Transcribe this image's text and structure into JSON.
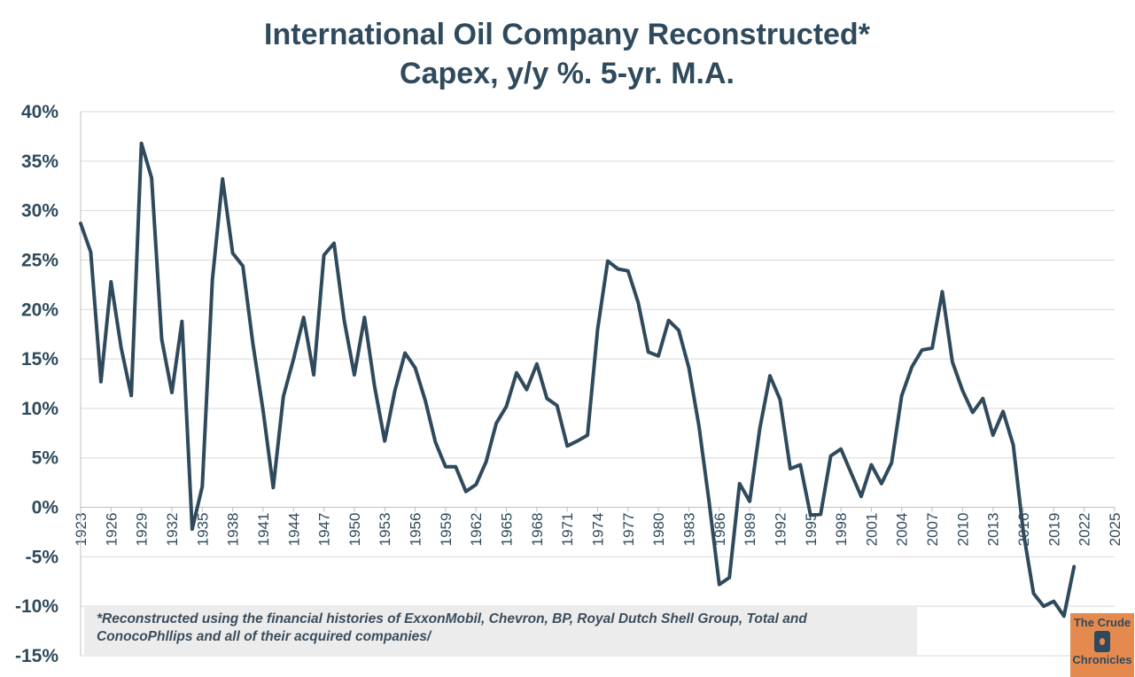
{
  "chart_data": {
    "type": "line",
    "title": "International Oil Company Reconstructed*",
    "subtitle": "Capex, y/y %. 5-yr. M.A.",
    "xlabel": "",
    "ylabel": "",
    "ylim": [
      -15,
      40
    ],
    "xlim": [
      1923,
      2025
    ],
    "y_ticks": [
      "40%",
      "35%",
      "30%",
      "25%",
      "20%",
      "15%",
      "10%",
      "5%",
      "0%",
      "-5%",
      "-10%",
      "-15%"
    ],
    "x_ticks": [
      "1923",
      "1926",
      "1929",
      "1932",
      "1935",
      "1938",
      "1941",
      "1944",
      "1947",
      "1950",
      "1953",
      "1956",
      "1959",
      "1962",
      "1965",
      "1968",
      "1971",
      "1974",
      "1977",
      "1980",
      "1983",
      "1986",
      "1989",
      "1992",
      "1995",
      "1998",
      "2001",
      "2004",
      "2007",
      "2010",
      "2013",
      "2016",
      "2019",
      "2022",
      "2025"
    ],
    "grid": true,
    "line_color": "#2f4a5c",
    "series": [
      {
        "x": [
          1923,
          1924,
          1925,
          1926,
          1927,
          1928,
          1929,
          1930,
          1931,
          1932,
          1933,
          1934,
          1935,
          1936,
          1937,
          1938,
          1939,
          1940,
          1941,
          1942,
          1943,
          1944,
          1945,
          1946,
          1947,
          1948,
          1949,
          1950,
          1951,
          1952,
          1953,
          1954,
          1955,
          1956,
          1957,
          1958,
          1959,
          1960,
          1961,
          1962,
          1963,
          1964,
          1965,
          1966,
          1967,
          1968,
          1969,
          1970,
          1971,
          1972,
          1973,
          1974,
          1975,
          1976,
          1977,
          1978,
          1979,
          1980,
          1981,
          1982,
          1983,
          1984,
          1985,
          1986,
          1987,
          1988,
          1989,
          1990,
          1991,
          1992,
          1993,
          1994,
          1995,
          1996,
          1997,
          1998,
          1999,
          2000,
          2001,
          2002,
          2003,
          2004,
          2005,
          2006,
          2007,
          2008,
          2009,
          2010,
          2011,
          2012,
          2013,
          2014,
          2015,
          2016,
          2017,
          2018,
          2019,
          2020,
          2021
        ],
        "values": [
          28.7,
          25.8,
          12.7,
          22.8,
          16.1,
          11.3,
          36.8,
          33.3,
          17.0,
          11.6,
          18.8,
          -2.2,
          2.1,
          23.0,
          33.2,
          25.7,
          24.4,
          16.5,
          9.8,
          2.0,
          11.2,
          15.0,
          19.2,
          13.4,
          25.5,
          26.7,
          18.9,
          13.4,
          19.2,
          12.2,
          6.7,
          11.8,
          15.6,
          14.1,
          10.8,
          6.6,
          4.1,
          4.1,
          1.6,
          2.3,
          4.6,
          8.5,
          10.2,
          13.6,
          11.9,
          14.5,
          11.0,
          10.3,
          6.2,
          6.7,
          7.3,
          18.0,
          24.9,
          24.1,
          23.9,
          20.7,
          15.7,
          15.3,
          18.9,
          17.9,
          14.1,
          8.2,
          0.5,
          -7.8,
          -7.1,
          2.4,
          0.6,
          8.0,
          13.3,
          10.9,
          3.9,
          4.3,
          -0.8,
          -0.7,
          5.2,
          5.9,
          3.5,
          1.1,
          4.3,
          2.4,
          4.5,
          11.3,
          14.2,
          15.9,
          16.1,
          21.8,
          14.7,
          11.8,
          9.6,
          11.0,
          7.3,
          9.7,
          6.3,
          -2.5,
          -8.7,
          -10.0,
          -9.5,
          -11.0,
          -6.0
        ]
      }
    ]
  },
  "footnote": {
    "line1": "*Reconstructed using the financial histories of ExxonMobil, Chevron, BP, Royal Dutch Shell Group, Total and",
    "line2": "ConocoPhllips and all of their acquired companies/"
  },
  "logo": {
    "line1": "The Crude",
    "line2": "Chronicles"
  }
}
